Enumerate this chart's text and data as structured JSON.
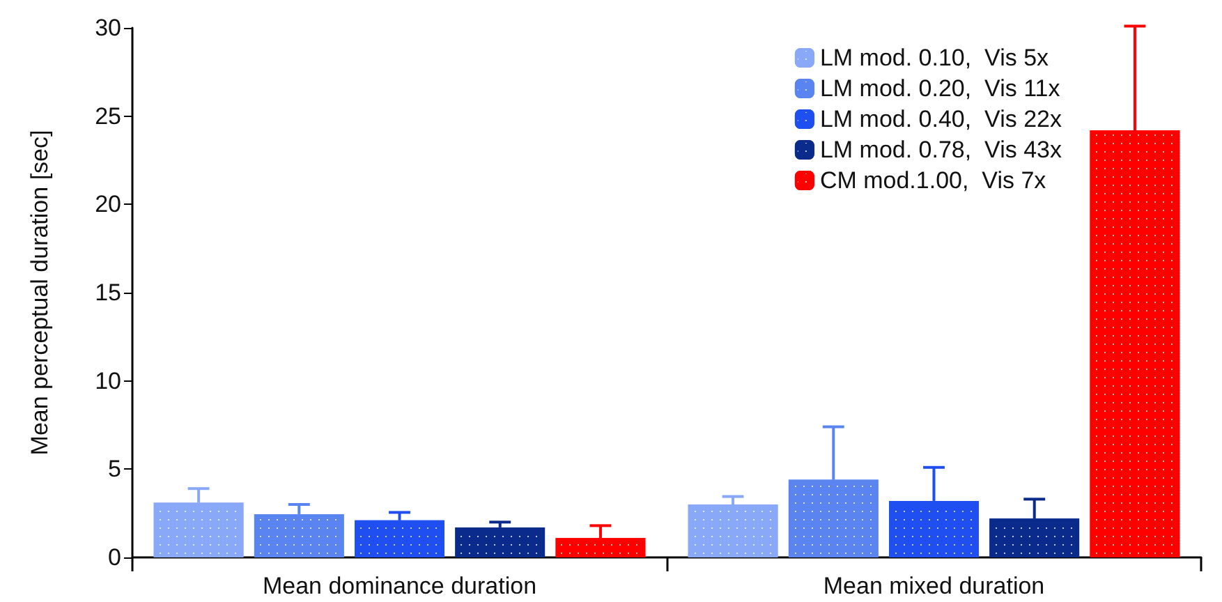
{
  "chart_data": {
    "type": "bar",
    "ylabel": "Mean perceptual duration [sec]",
    "categories": [
      "Mean dominance duration",
      "Mean mixed duration"
    ],
    "ylim": [
      0,
      30
    ],
    "yticks": [
      0,
      5,
      10,
      15,
      20,
      25,
      30
    ],
    "grid": false,
    "legend": "top right",
    "series": [
      {
        "name": "LM mod. 0.10,  Vis 5x",
        "color": "#8aa8f8",
        "values": [
          3.1,
          3.0
        ],
        "errors": [
          [
            3.1,
            3.9
          ],
          [
            3.0,
            3.45
          ]
        ]
      },
      {
        "name": "LM mod. 0.20,  Vis 11x",
        "color": "#5a85f0",
        "values": [
          2.45,
          4.4
        ],
        "errors": [
          [
            2.45,
            3.0
          ],
          [
            4.4,
            7.4
          ]
        ]
      },
      {
        "name": "LM mod. 0.40,  Vis 22x",
        "color": "#1f4ff0",
        "values": [
          2.1,
          3.2
        ],
        "errors": [
          [
            2.1,
            2.55
          ],
          [
            3.2,
            5.1
          ]
        ]
      },
      {
        "name": "LM mod. 0.78,  Vis 43x",
        "color": "#0a2a8c",
        "values": [
          1.7,
          2.2
        ],
        "errors": [
          [
            1.7,
            2.0
          ],
          [
            2.2,
            3.3
          ]
        ]
      },
      {
        "name": "CM mod.1.00,  Vis 7x",
        "color": "#ff0000",
        "values": [
          1.1,
          24.2
        ],
        "errors": [
          [
            1.1,
            1.8
          ],
          [
            24.2,
            30.1
          ]
        ]
      }
    ]
  }
}
